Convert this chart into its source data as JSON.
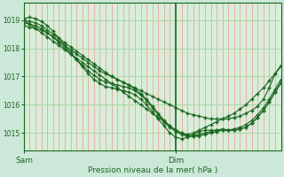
{
  "bg_color": "#cce8d8",
  "plot_bg_color": "#d8eed8",
  "grid_color_v": "#e89898",
  "grid_color_h": "#a8d8a8",
  "line_color": "#1a6620",
  "marker_color": "#1a6620",
  "xlabel": "Pression niveau de la mer( hPa )",
  "xlabel_color": "#1a6620",
  "tick_color": "#1a6620",
  "ylim": [
    1014.4,
    1019.6
  ],
  "xlim": [
    0,
    44
  ],
  "yticks": [
    1015,
    1016,
    1017,
    1018,
    1019
  ],
  "sam_x": 0,
  "dim_x": 26,
  "n_v_lines": 44,
  "series": [
    [
      1019.0,
      1018.85,
      1018.7,
      1018.55,
      1018.4,
      1018.25,
      1018.1,
      1017.95,
      1017.8,
      1017.65,
      1017.5,
      1017.35,
      1017.2,
      1017.05,
      1016.9,
      1016.75,
      1016.6,
      1016.45,
      1016.3,
      1016.15,
      1016.0,
      1015.85,
      1015.7,
      1015.55,
      1015.4,
      1015.25,
      1015.1,
      1015.0,
      1014.95,
      1015.0,
      1015.1,
      1015.2,
      1015.3,
      1015.4,
      1015.5,
      1015.6,
      1015.7,
      1015.85,
      1016.0,
      1016.2,
      1016.4,
      1016.6,
      1016.85,
      1017.1,
      1017.35
    ],
    [
      1019.0,
      1018.95,
      1018.9,
      1018.8,
      1018.65,
      1018.5,
      1018.35,
      1018.2,
      1018.05,
      1017.9,
      1017.75,
      1017.6,
      1017.45,
      1017.3,
      1017.15,
      1017.0,
      1016.9,
      1016.8,
      1016.7,
      1016.6,
      1016.5,
      1016.4,
      1016.3,
      1016.2,
      1016.1,
      1016.0,
      1015.9,
      1015.8,
      1015.7,
      1015.65,
      1015.6,
      1015.55,
      1015.5,
      1015.5,
      1015.5,
      1015.5,
      1015.55,
      1015.6,
      1015.7,
      1015.8,
      1015.95,
      1016.2,
      1016.6,
      1017.1,
      1017.4
    ],
    [
      1019.05,
      1019.1,
      1019.05,
      1018.95,
      1018.8,
      1018.6,
      1018.35,
      1018.1,
      1017.85,
      1017.6,
      1017.35,
      1017.1,
      1016.9,
      1016.75,
      1016.65,
      1016.6,
      1016.55,
      1016.5,
      1016.45,
      1016.35,
      1016.2,
      1016.0,
      1015.75,
      1015.5,
      1015.25,
      1015.0,
      1014.85,
      1014.8,
      1014.85,
      1014.95,
      1015.05,
      1015.1,
      1015.1,
      1015.1,
      1015.1,
      1015.1,
      1015.15,
      1015.2,
      1015.3,
      1015.45,
      1015.65,
      1015.9,
      1016.2,
      1016.55,
      1016.9
    ],
    [
      1018.9,
      1018.85,
      1018.8,
      1018.7,
      1018.55,
      1018.4,
      1018.25,
      1018.1,
      1017.95,
      1017.8,
      1017.65,
      1017.5,
      1017.35,
      1017.2,
      1017.1,
      1017.0,
      1016.9,
      1016.8,
      1016.7,
      1016.55,
      1016.4,
      1016.2,
      1015.95,
      1015.7,
      1015.45,
      1015.25,
      1015.1,
      1015.0,
      1014.92,
      1014.9,
      1014.95,
      1015.0,
      1015.05,
      1015.1,
      1015.15,
      1015.1,
      1015.1,
      1015.15,
      1015.2,
      1015.35,
      1015.55,
      1015.8,
      1016.1,
      1016.45,
      1016.8
    ],
    [
      1018.8,
      1018.75,
      1018.7,
      1018.65,
      1018.55,
      1018.4,
      1018.2,
      1018.0,
      1017.8,
      1017.6,
      1017.4,
      1017.2,
      1017.05,
      1016.9,
      1016.8,
      1016.75,
      1016.7,
      1016.65,
      1016.6,
      1016.5,
      1016.35,
      1016.15,
      1015.9,
      1015.65,
      1015.4,
      1015.2,
      1015.05,
      1014.95,
      1014.88,
      1014.88,
      1014.9,
      1014.95,
      1015.0,
      1015.05,
      1015.1,
      1015.1,
      1015.1,
      1015.15,
      1015.2,
      1015.35,
      1015.55,
      1015.8,
      1016.1,
      1016.45,
      1016.75
    ]
  ]
}
